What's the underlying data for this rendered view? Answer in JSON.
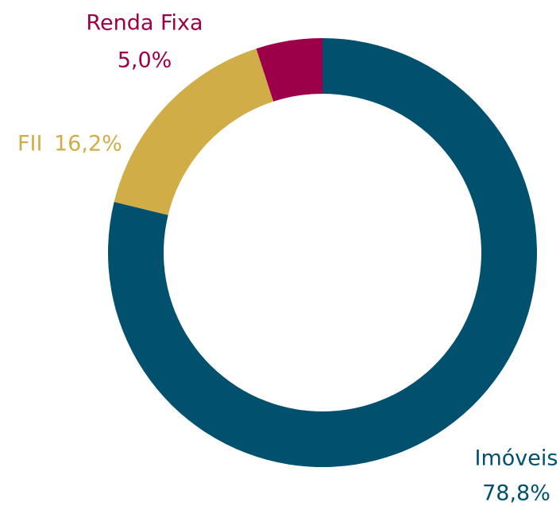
{
  "chart_data": {
    "type": "donut",
    "categories": [
      "Imóveis",
      "FII",
      "Renda Fixa"
    ],
    "values": [
      78.8,
      16.2,
      5.0
    ],
    "value_labels": [
      "78,8%",
      "16,2%",
      "5,0%"
    ],
    "colors": [
      "#00506e",
      "#d1ad47",
      "#9b0048"
    ]
  }
}
